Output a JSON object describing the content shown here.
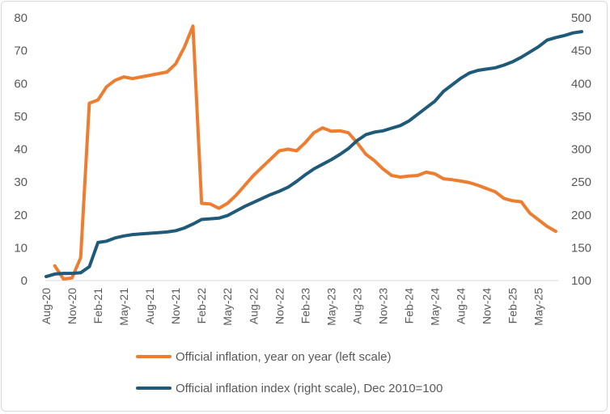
{
  "chart_data": {
    "type": "line",
    "title": "",
    "x_tick_labels": [
      "Aug-20",
      "Nov-20",
      "Feb-21",
      "May-21",
      "Aug-21",
      "Nov-21",
      "Feb-22",
      "May-22",
      "Aug-22",
      "Nov-22",
      "Feb-23",
      "May-23",
      "Aug-23",
      "Nov-23",
      "Feb-24",
      "May-24",
      "Aug-24",
      "Nov-24",
      "Feb-25",
      "May-25"
    ],
    "x_start": "2020-08",
    "x_end": "2025-07",
    "y_left": {
      "ticks": [
        0,
        10,
        20,
        30,
        40,
        50,
        60,
        70,
        80
      ],
      "ylim": [
        0,
        80
      ]
    },
    "y_right": {
      "ticks": [
        100,
        150,
        200,
        250,
        300,
        350,
        400,
        450,
        500
      ],
      "ylim": [
        100,
        500
      ]
    },
    "series": [
      {
        "name": "Official inflation, year on year (left scale)",
        "axis": "left",
        "color": "#ED7D31",
        "start_month_index": 1,
        "values": [
          4.5,
          0.5,
          0.8,
          7,
          54,
          55,
          59,
          61,
          62,
          61.5,
          62,
          62.5,
          63,
          63.5,
          66,
          71,
          77.5,
          23.5,
          23.3,
          22,
          23.5,
          26,
          29,
          32,
          34.5,
          37,
          39.5,
          40,
          39.5,
          42,
          45,
          46.5,
          45.5,
          45.6,
          45,
          42,
          38.5,
          36.5,
          34,
          32,
          31.5,
          31.8,
          32,
          33,
          32.5,
          31,
          30.7,
          30.3,
          29.8,
          29,
          28,
          27,
          25,
          24.3,
          24,
          20.5,
          18.5,
          16.5,
          15
        ]
      },
      {
        "name": "Official inflation index (right scale), Dec 2010=100",
        "axis": "right",
        "color": "#1F5A78",
        "start_month_index": 0,
        "values": [
          106,
          110,
          111,
          111,
          112,
          121,
          158,
          160,
          165,
          168,
          170,
          171,
          172,
          173,
          174,
          176,
          180,
          186,
          193,
          194,
          195,
          199,
          206,
          213,
          219,
          225,
          231,
          236,
          242,
          251,
          261,
          270,
          277,
          284,
          292,
          301,
          313,
          322,
          326,
          328,
          332,
          336,
          343,
          353,
          363,
          373,
          388,
          398,
          408,
          416,
          420,
          422,
          424,
          428,
          433,
          440,
          448,
          456,
          466,
          470,
          473,
          477,
          479
        ]
      }
    ],
    "legend": {
      "position": "bottom",
      "entries": [
        {
          "label": "Official inflation, year on year (left scale)",
          "color": "#ED7D31"
        },
        {
          "label": "Official inflation index (right scale), Dec 2010=100",
          "color": "#1F5A78"
        }
      ]
    }
  }
}
